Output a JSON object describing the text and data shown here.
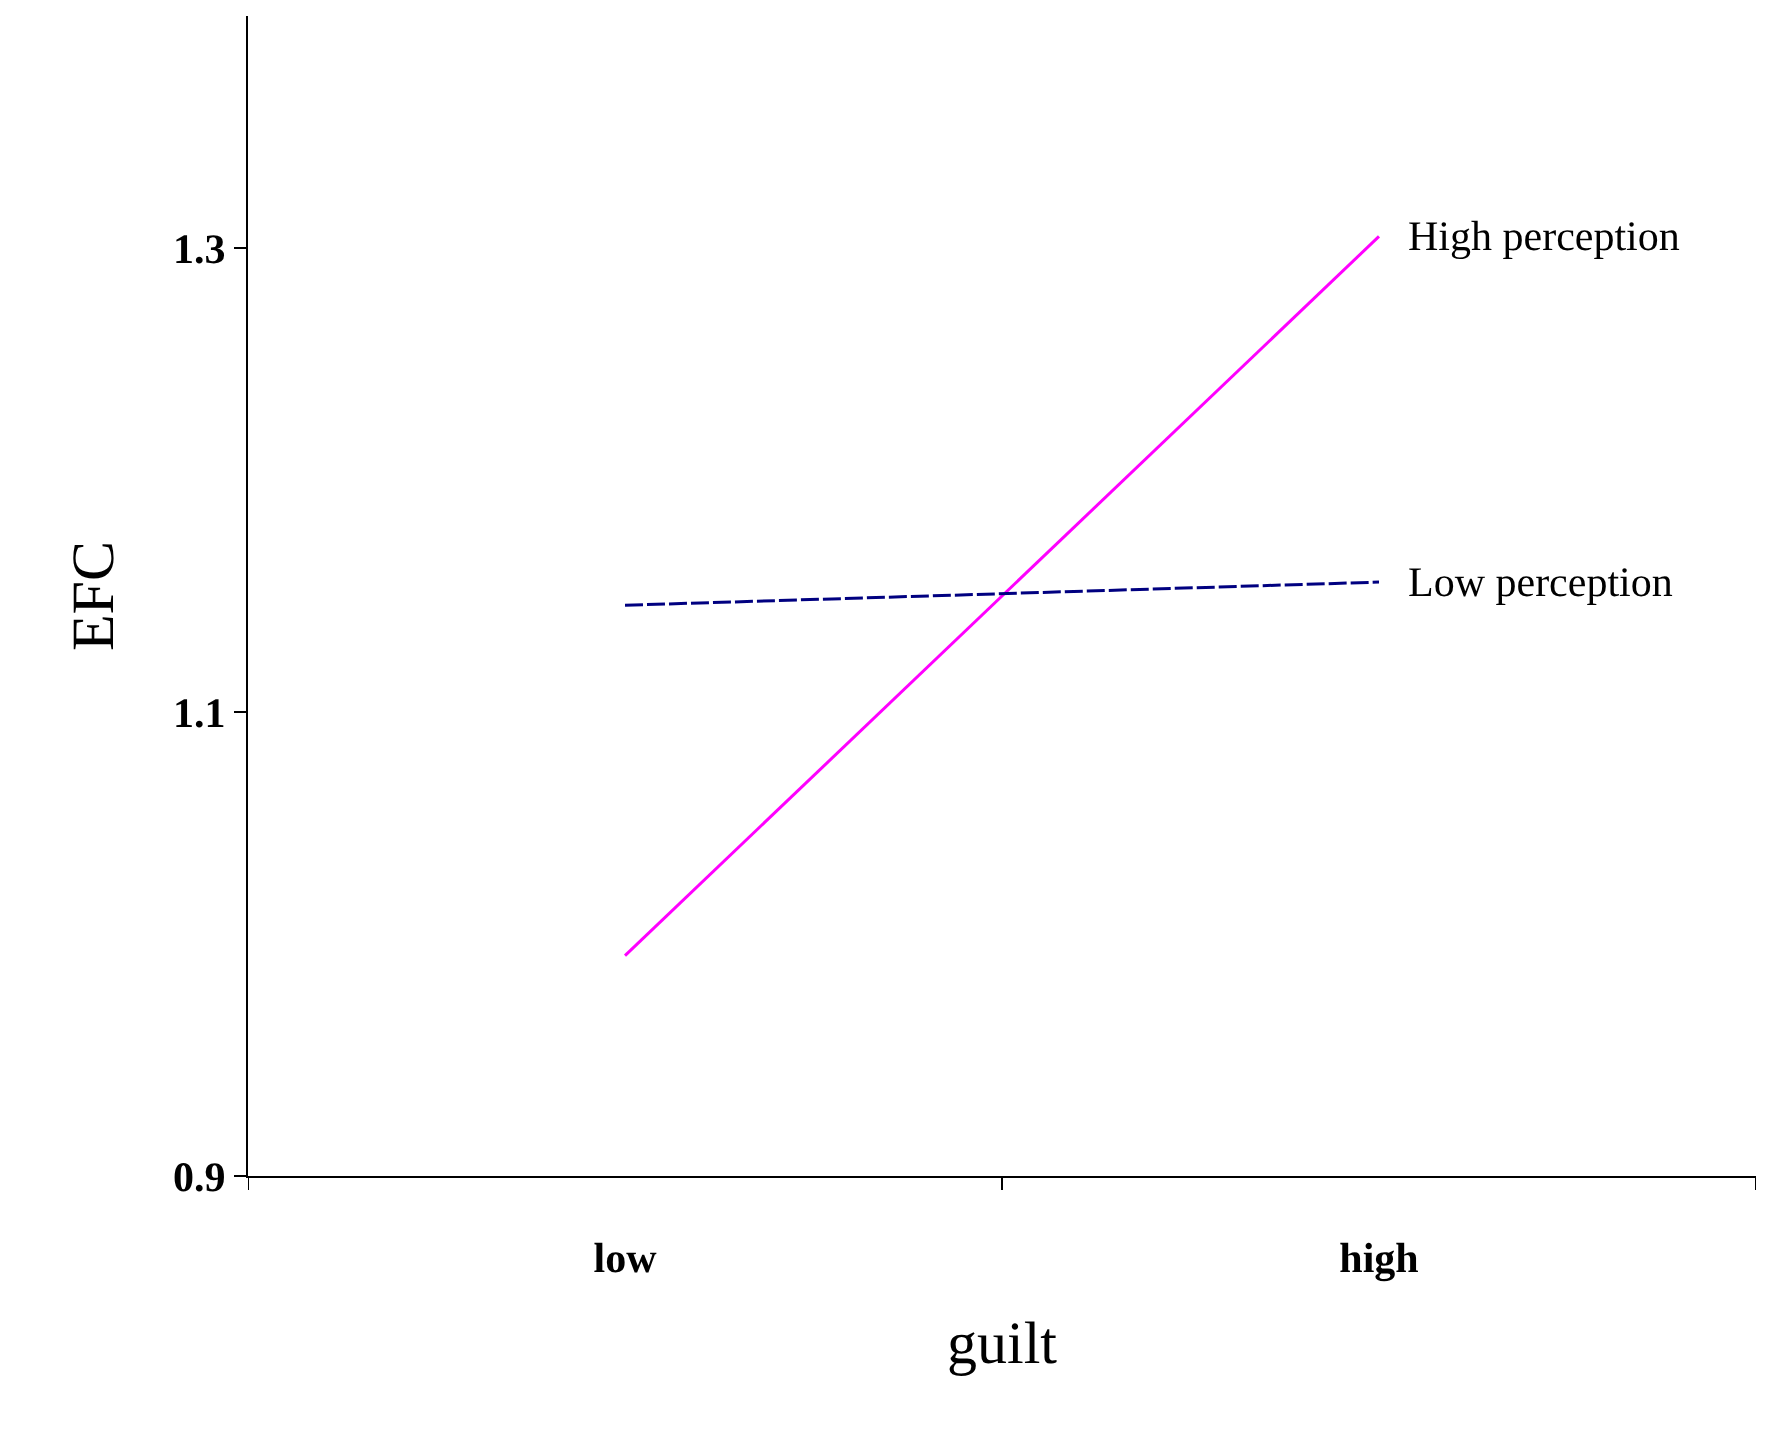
{
  "chart_data": {
    "type": "line",
    "xlabel": "guilt",
    "ylabel": "EFC",
    "categories": [
      "low",
      "high"
    ],
    "series": [
      {
        "name": "High perception",
        "color": "#ff00ff",
        "values": [
          0.995,
          1.305
        ],
        "line_style": "solid"
      },
      {
        "name": "Low perception",
        "color": "#000080",
        "values": [
          1.146,
          1.156
        ],
        "line_style": "dashed"
      }
    ],
    "ylim": [
      0.9,
      1.4
    ],
    "yticks": [
      0.9,
      1.1,
      1.3
    ],
    "legend": false,
    "marker": "none"
  }
}
